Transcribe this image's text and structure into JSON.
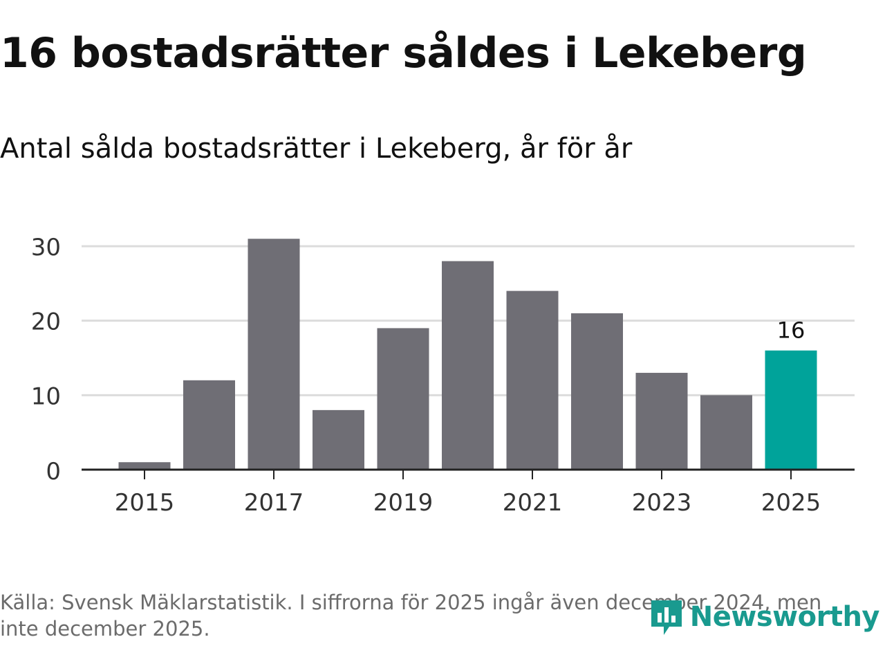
{
  "header": {
    "title": "16 bostadsrätter såldes i Lekeberg",
    "subtitle": "Antal sålda bostadsrätter i Lekeberg, år för år"
  },
  "chart_data": {
    "type": "bar",
    "categories": [
      "2015",
      "2016",
      "2017",
      "2018",
      "2019",
      "2020",
      "2021",
      "2022",
      "2023",
      "2024",
      "2025"
    ],
    "values": [
      1,
      12,
      31,
      8,
      19,
      28,
      24,
      21,
      13,
      10,
      16
    ],
    "x_tick_labels": [
      "2015",
      "2017",
      "2019",
      "2021",
      "2023",
      "2025"
    ],
    "y_ticks": [
      0,
      10,
      20,
      30
    ],
    "ylim": [
      0,
      30
    ],
    "highlight_index": 10,
    "highlight_label": "16",
    "title": "16 bostadsrätter såldes i Lekeberg",
    "subtitle": "Antal sålda bostadsrätter i Lekeberg, år för år",
    "xlabel": "",
    "ylabel": "",
    "grid": true,
    "colors": {
      "bar": "#6f6e75",
      "highlight": "#00a39a",
      "grid": "#dcdcdc",
      "axis": "#222222"
    }
  },
  "footer": {
    "source": "Källa: Svensk Mäklarstatistik. I siffrorna för 2025 ingår även december 2024, men inte december 2025.",
    "brand": "Newsworthy",
    "brand_icon": "newsworthy-logo-icon",
    "brand_color": "#199a8f"
  }
}
